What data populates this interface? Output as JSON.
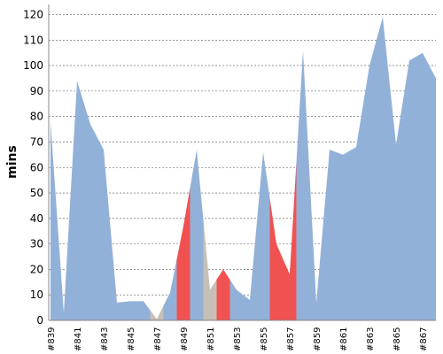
{
  "chart_data": {
    "type": "area",
    "y_label": "mins",
    "categories": [
      "#839",
      null,
      "#841",
      null,
      "#843",
      null,
      "#845",
      null,
      "#847",
      null,
      "#849",
      null,
      "#851",
      null,
      "#853",
      null,
      "#855",
      null,
      "#857",
      null,
      "#859",
      null,
      "#861",
      null,
      "#863",
      null,
      "#865",
      null,
      "#867",
      null
    ],
    "values": [
      78,
      3,
      94,
      77,
      67,
      7,
      7.5,
      7.5,
      0.5,
      11,
      37,
      67,
      12,
      20,
      12,
      8,
      66,
      30,
      18,
      106,
      7,
      67,
      65,
      68,
      100,
      119,
      69,
      102,
      105,
      95
    ],
    "colors": [
      "#92b1d9",
      "#92b1d9",
      "#92b1d9",
      "#92b1d9",
      "#92b1d9",
      "#92b1d9",
      "#92b1d9",
      "#92b1d9",
      "#c8c0b6",
      "#92b1d9",
      "#f05252",
      "#92b1d9",
      "#c8c0b6",
      "#f05252",
      "#92b1d9",
      "#92b1d9",
      "#92b1d9",
      "#f05252",
      "#f05252",
      "#92b1d9",
      "#92b1d9",
      "#92b1d9",
      "#92b1d9",
      "#92b1d9",
      "#92b1d9",
      "#92b1d9",
      "#92b1d9",
      "#92b1d9",
      "#92b1d9",
      "#92b1d9"
    ],
    "ylim": [
      0,
      124
    ],
    "yticks": [
      0,
      10,
      20,
      30,
      40,
      50,
      60,
      70,
      80,
      90,
      100,
      110,
      120
    ],
    "grid": true
  }
}
